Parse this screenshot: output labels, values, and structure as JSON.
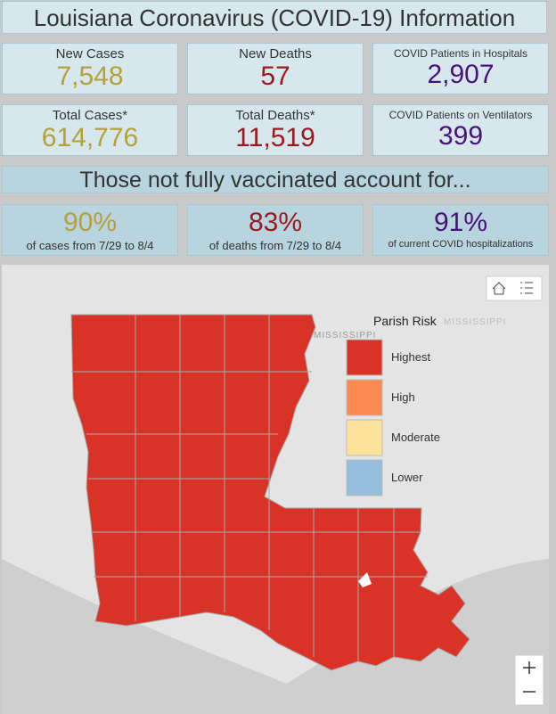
{
  "header": {
    "title": "Louisiana Coronavirus (COVID-19) Information"
  },
  "stats": [
    [
      {
        "label": "New Cases",
        "value": "7,548",
        "tone": "gold"
      },
      {
        "label": "New Deaths",
        "value": "57",
        "tone": "red"
      },
      {
        "label": "COVID Patients in Hospitals",
        "value": "2,907",
        "tone": "purple"
      }
    ],
    [
      {
        "label": "Total Cases*",
        "value": "614,776",
        "tone": "gold"
      },
      {
        "label": "Total Deaths*",
        "value": "11,519",
        "tone": "red"
      },
      {
        "label": "COVID Patients on Ventilators",
        "value": "399",
        "tone": "purple"
      }
    ]
  ],
  "banner": "Those not fully vaccinated account for...",
  "vaccination": [
    {
      "value": "90%",
      "caption": "of cases from 7/29 to 8/4",
      "tone": "gold"
    },
    {
      "value": "83%",
      "caption": "of deaths from 7/29 to 8/4",
      "tone": "red"
    },
    {
      "value": "91%",
      "caption": "of current COVID hospitalizations",
      "tone": "purple"
    }
  ],
  "map": {
    "state_label": "MISSISSIPPI",
    "legend": {
      "title": "Parish Risk",
      "items": [
        {
          "label": "Highest",
          "color": "#d93327"
        },
        {
          "label": "High",
          "color": "#fb8b52"
        },
        {
          "label": "Moderate",
          "color": "#fde29c"
        },
        {
          "label": "Lower",
          "color": "#94bedc"
        }
      ]
    }
  }
}
